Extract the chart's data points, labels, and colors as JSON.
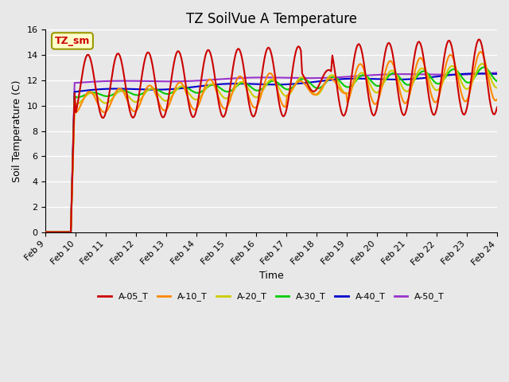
{
  "title": "TZ SoilVue A Temperature",
  "xlabel": "Time",
  "ylabel": "Soil Temperature (C)",
  "ylim": [
    0,
    16
  ],
  "yticks": [
    0,
    2,
    4,
    6,
    8,
    10,
    12,
    14,
    16
  ],
  "series_colors": {
    "A-05_T": "#cc0000",
    "A-10_T": "#ff8800",
    "A-20_T": "#cccc00",
    "A-30_T": "#00cc00",
    "A-40_T": "#0000cc",
    "A-50_T": "#9933cc"
  },
  "tz_sm_label": "TZ_sm",
  "tz_sm_box_color": "#ffffcc",
  "tz_sm_text_color": "#cc0000",
  "background_color": "#e8e8e8",
  "plot_bg_color": "#e8e8e8",
  "grid_color": "#ffffff",
  "n_points": 360,
  "x_start": 9.0,
  "x_end": 24.0,
  "xtick_positions": [
    9,
    10,
    11,
    12,
    13,
    14,
    15,
    16,
    17,
    18,
    19,
    20,
    21,
    22,
    23,
    24
  ],
  "xtick_labels": [
    "Feb 9",
    "Feb 10",
    "Feb 11",
    "Feb 12",
    "Feb 13",
    "Feb 14",
    "Feb 15",
    "Feb 16",
    "Feb 17",
    "Feb 18",
    "Feb 19",
    "Feb 20",
    "Feb 21",
    "Feb 22",
    "Feb 23",
    "Feb 24"
  ]
}
